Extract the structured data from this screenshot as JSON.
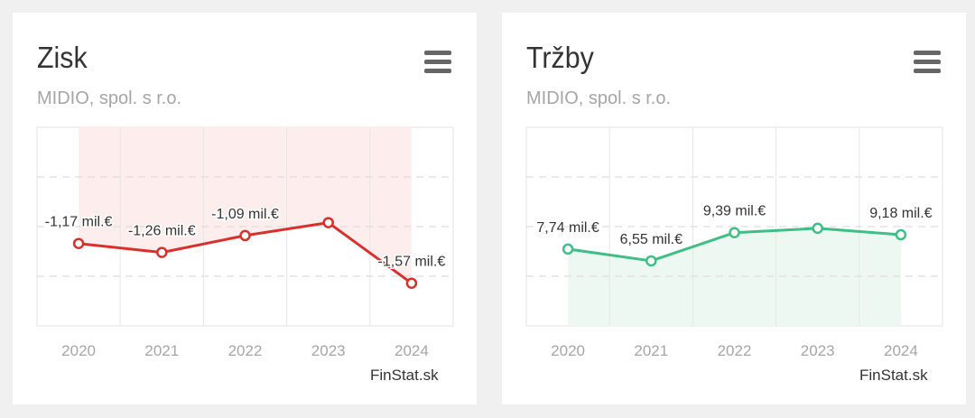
{
  "credit": "FinStat.sk",
  "chart_data": [
    {
      "type": "line",
      "title": "Zisk",
      "subtitle": "MIDIO, spol. s r.o.",
      "categories": [
        "2020",
        "2021",
        "2022",
        "2023",
        "2024"
      ],
      "values": [
        -1.17,
        -1.26,
        -1.09,
        -0.96,
        -1.57
      ],
      "labels": [
        "-1,17 mil.€",
        "-1,26 mil.€",
        "-1,09 mil.€",
        "",
        "-1,57 mil.€"
      ],
      "ylim": [
        -2.0,
        0.0
      ],
      "unit": "mil.€",
      "grid": true,
      "legend": "none",
      "colors": {
        "line": "#d9302c",
        "fill": "#fdeeed",
        "marker_fill": "#ffffff"
      }
    },
    {
      "type": "line",
      "title": "Tržby",
      "subtitle": "MIDIO, spol. s r.o.",
      "categories": [
        "2020",
        "2021",
        "2022",
        "2023",
        "2024"
      ],
      "values": [
        7.74,
        6.55,
        9.39,
        9.83,
        9.18
      ],
      "labels": [
        "7,74 mil.€",
        "6,55 mil.€",
        "9,39 mil.€",
        "",
        "9,18 mil.€"
      ],
      "ylim": [
        0,
        20
      ],
      "unit": "mil.€",
      "grid": true,
      "legend": "none",
      "colors": {
        "line": "#3dbf86",
        "fill": "#eef8f3",
        "marker_fill": "#ffffff"
      }
    }
  ]
}
